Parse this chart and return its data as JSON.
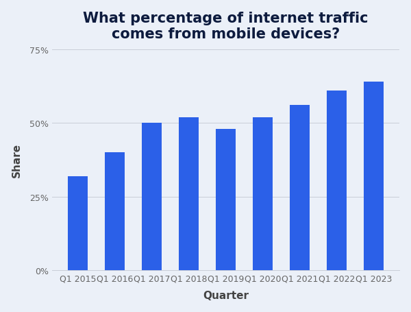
{
  "title": "What percentage of internet traffic\ncomes from mobile devices?",
  "xlabel": "Quarter",
  "ylabel": "Share",
  "categories": [
    "Q1 2015",
    "Q1 2016",
    "Q1 2017",
    "Q1 2018",
    "Q1 2019",
    "Q1 2020",
    "Q1 2021",
    "Q1 2022",
    "Q1 2023"
  ],
  "values": [
    32,
    40,
    50,
    52,
    48,
    52,
    56,
    61,
    64
  ],
  "bar_color": "#2B60E8",
  "background_color": "#EBF0F8",
  "gridline_color": "#C8CDD8",
  "title_color": "#0d1b3e",
  "axis_label_color": "#444444",
  "tick_label_color": "#666666",
  "ylim": [
    0,
    75
  ],
  "yticks": [
    0,
    25,
    50,
    75
  ],
  "title_fontsize": 15,
  "axis_label_fontsize": 11,
  "tick_fontsize": 9,
  "bar_width": 0.55
}
